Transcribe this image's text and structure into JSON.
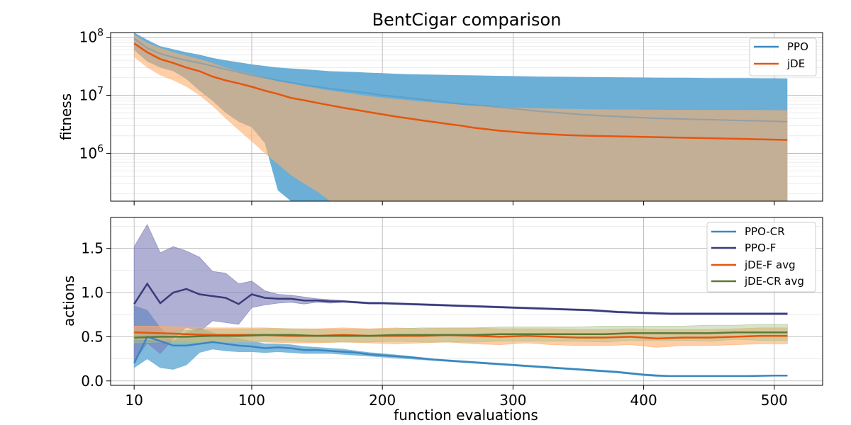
{
  "chart_data": [
    {
      "type": "line",
      "title": "BentCigar comparison",
      "xlabel": "",
      "ylabel": "fitness",
      "yscale": "log",
      "xlim": [
        -8,
        537
      ],
      "ylim": [
        150000,
        120000000
      ],
      "y_ticks": [
        {
          "value": 1000000,
          "base": "10",
          "exp": "6"
        },
        {
          "value": 10000000,
          "base": "10",
          "exp": "7"
        },
        {
          "value": 100000000,
          "base": "10",
          "exp": "8"
        }
      ],
      "x_ticks": [
        10,
        100,
        200,
        300,
        400,
        500
      ],
      "grid": true,
      "legend_position": "top-right",
      "series": [
        {
          "name": "PPO",
          "color": "#3a87bf",
          "band_color": "#6baed6",
          "x": [
            10,
            20,
            30,
            40,
            50,
            60,
            70,
            80,
            90,
            100,
            110,
            120,
            130,
            140,
            150,
            160,
            170,
            180,
            190,
            200,
            210,
            220,
            230,
            240,
            250,
            260,
            270,
            280,
            290,
            300,
            310,
            320,
            330,
            340,
            350,
            360,
            370,
            380,
            390,
            400,
            410,
            420,
            430,
            440,
            450,
            460,
            470,
            480,
            490,
            500,
            510
          ],
          "mean": [
            95000000,
            65000000,
            52000000,
            45000000,
            40000000,
            36000000,
            32000000,
            28000000,
            25000000,
            22000000,
            20000000,
            18000000,
            16500000,
            15000000,
            14000000,
            13000000,
            12200000,
            11500000,
            10800000,
            10000000,
            9500000,
            9000000,
            8500000,
            8000000,
            7500000,
            7100000,
            6800000,
            6500000,
            6200000,
            5900000,
            5600000,
            5300000,
            5100000,
            4900000,
            4700000,
            4550000,
            4400000,
            4300000,
            4200000,
            4100000,
            4000000,
            3950000,
            3900000,
            3850000,
            3800000,
            3750000,
            3700000,
            3650000,
            3600000,
            3550000,
            3500000
          ],
          "upper": [
            120000000,
            90000000,
            70000000,
            62000000,
            55000000,
            50000000,
            44000000,
            40000000,
            37000000,
            34000000,
            32000000,
            30000000,
            29000000,
            28000000,
            27000000,
            26000000,
            25500000,
            25000000,
            24500000,
            24000000,
            23500000,
            23000000,
            22800000,
            22600000,
            22400000,
            22200000,
            22000000,
            21800000,
            21600000,
            21400000,
            21200000,
            21000000,
            20900000,
            20800000,
            20700000,
            20600000,
            20500000,
            20400000,
            20300000,
            20200000,
            20100000,
            20000000,
            20000000,
            19900000,
            19800000,
            19800000,
            19700000,
            19700000,
            19600000,
            19600000,
            19500000
          ],
          "lower": [
            60000000,
            38000000,
            30000000,
            26000000,
            19000000,
            12000000,
            8000000,
            5000000,
            3500000,
            2800000,
            1500000,
            230000,
            150000,
            150000,
            150000,
            150000,
            150000,
            150000,
            150000,
            150000,
            150000,
            150000,
            150000,
            150000,
            150000,
            150000,
            150000,
            150000,
            150000,
            150000,
            150000,
            150000,
            150000,
            150000,
            150000,
            150000,
            150000,
            150000,
            150000,
            150000,
            150000,
            150000,
            150000,
            150000,
            150000,
            150000,
            150000,
            150000,
            150000,
            150000,
            150000
          ]
        },
        {
          "name": "jDE",
          "color": "#e6550d",
          "band_color": "#fdae6b",
          "x": [
            10,
            20,
            30,
            40,
            50,
            60,
            70,
            80,
            90,
            100,
            110,
            120,
            130,
            140,
            150,
            160,
            170,
            180,
            190,
            200,
            210,
            220,
            230,
            240,
            250,
            260,
            270,
            280,
            290,
            300,
            310,
            320,
            330,
            340,
            350,
            360,
            370,
            380,
            390,
            400,
            410,
            420,
            430,
            440,
            450,
            460,
            470,
            480,
            490,
            500,
            510
          ],
          "mean": [
            78000000,
            55000000,
            42000000,
            36000000,
            30000000,
            26000000,
            21000000,
            18000000,
            16000000,
            14000000,
            12000000,
            10500000,
            9000000,
            8200000,
            7400000,
            6700000,
            6100000,
            5600000,
            5100000,
            4700000,
            4300000,
            4000000,
            3700000,
            3450000,
            3200000,
            3000000,
            2750000,
            2600000,
            2450000,
            2350000,
            2250000,
            2180000,
            2120000,
            2070000,
            2030000,
            2000000,
            1980000,
            1960000,
            1940000,
            1920000,
            1900000,
            1880000,
            1860000,
            1840000,
            1820000,
            1800000,
            1780000,
            1760000,
            1740000,
            1720000,
            1700000
          ],
          "upper": [
            110000000,
            80000000,
            65000000,
            55000000,
            48000000,
            42000000,
            36000000,
            30000000,
            26000000,
            23000000,
            20000000,
            17500000,
            16000000,
            14500000,
            13200000,
            12100000,
            11200000,
            10400000,
            9700000,
            9100000,
            8600000,
            8200000,
            7800000,
            7500000,
            7200000,
            6900000,
            6700000,
            6500000,
            6300000,
            6150000,
            6050000,
            5950000,
            5900000,
            5850000,
            5800000,
            5750000,
            5720000,
            5700000,
            5680000,
            5660000,
            5640000,
            5620000,
            5610000,
            5600000,
            5590000,
            5580000,
            5570000,
            5560000,
            5550000,
            5540000,
            5530000
          ],
          "lower": [
            45000000,
            30000000,
            22000000,
            18000000,
            14000000,
            10000000,
            6500000,
            4000000,
            2500000,
            1600000,
            1000000,
            650000,
            420000,
            300000,
            220000,
            150000,
            150000,
            150000,
            150000,
            150000,
            150000,
            150000,
            150000,
            150000,
            150000,
            150000,
            150000,
            150000,
            150000,
            150000,
            150000,
            150000,
            150000,
            150000,
            150000,
            150000,
            150000,
            150000,
            150000,
            150000,
            150000,
            150000,
            150000,
            150000,
            150000,
            150000,
            150000,
            150000,
            150000,
            150000,
            150000
          ]
        }
      ]
    },
    {
      "type": "line",
      "title": "",
      "xlabel": "function evaluations",
      "ylabel": "actions",
      "ylim": [
        -0.05,
        1.85
      ],
      "y_ticks": [
        0.0,
        0.5,
        1.0,
        1.5
      ],
      "y_tick_labels": [
        "0.0",
        "0.5",
        "1.0",
        "1.5"
      ],
      "x_ticks": [
        10,
        100,
        200,
        300,
        400,
        500
      ],
      "xlim": [
        -8,
        537
      ],
      "grid": true,
      "legend_position": "top-right",
      "series": [
        {
          "name": "PPO-CR",
          "color": "#3a87bf",
          "band_color": "#6baed6",
          "x": [
            10,
            20,
            30,
            40,
            50,
            60,
            70,
            80,
            90,
            100,
            110,
            120,
            130,
            140,
            150,
            160,
            170,
            180,
            190,
            200,
            220,
            240,
            260,
            280,
            300,
            320,
            340,
            360,
            380,
            400,
            410,
            420,
            440,
            460,
            480,
            500,
            510
          ],
          "mean": [
            0.2,
            0.5,
            0.45,
            0.4,
            0.4,
            0.42,
            0.44,
            0.42,
            0.4,
            0.39,
            0.37,
            0.38,
            0.37,
            0.35,
            0.35,
            0.34,
            0.33,
            0.32,
            0.3,
            0.29,
            0.27,
            0.24,
            0.22,
            0.2,
            0.18,
            0.16,
            0.14,
            0.12,
            0.1,
            0.07,
            0.06,
            0.055,
            0.055,
            0.055,
            0.055,
            0.06,
            0.06
          ],
          "upper": [
            0.85,
            0.8,
            0.6,
            0.45,
            0.55,
            0.6,
            0.55,
            0.5,
            0.48,
            0.45,
            0.42,
            0.42,
            0.41,
            0.39,
            0.38,
            0.37,
            0.36,
            0.34,
            0.32,
            0.31,
            0.28,
            0.25,
            0.23,
            0.21,
            0.19,
            0.17,
            0.15,
            0.13,
            0.11,
            0.08,
            0.07,
            0.06,
            0.06,
            0.06,
            0.06,
            0.065,
            0.065
          ],
          "lower": [
            0.15,
            0.25,
            0.15,
            0.13,
            0.18,
            0.32,
            0.36,
            0.34,
            0.33,
            0.33,
            0.32,
            0.33,
            0.32,
            0.31,
            0.31,
            0.31,
            0.3,
            0.29,
            0.28,
            0.27,
            0.25,
            0.23,
            0.21,
            0.19,
            0.17,
            0.15,
            0.13,
            0.11,
            0.09,
            0.06,
            0.05,
            0.05,
            0.05,
            0.05,
            0.05,
            0.055,
            0.055
          ]
        },
        {
          "name": "PPO-F",
          "color": "#393b79",
          "band_color": "#7b7bb8",
          "x": [
            10,
            20,
            30,
            40,
            50,
            60,
            70,
            80,
            90,
            100,
            110,
            120,
            130,
            140,
            150,
            160,
            170,
            180,
            190,
            200,
            220,
            240,
            260,
            280,
            300,
            320,
            340,
            360,
            380,
            400,
            420,
            440,
            460,
            480,
            500,
            510
          ],
          "mean": [
            0.87,
            1.1,
            0.88,
            1.0,
            1.04,
            0.98,
            0.96,
            0.94,
            0.87,
            0.98,
            0.94,
            0.93,
            0.93,
            0.91,
            0.91,
            0.9,
            0.9,
            0.89,
            0.88,
            0.88,
            0.87,
            0.86,
            0.85,
            0.84,
            0.83,
            0.82,
            0.81,
            0.8,
            0.78,
            0.77,
            0.76,
            0.76,
            0.76,
            0.76,
            0.76,
            0.76
          ],
          "upper": [
            1.52,
            1.77,
            1.45,
            1.52,
            1.47,
            1.4,
            1.24,
            1.22,
            1.1,
            1.13,
            1.02,
            0.98,
            0.97,
            0.95,
            0.93,
            0.92,
            0.91,
            0.9,
            0.89,
            0.89,
            0.88,
            0.87,
            0.86,
            0.85,
            0.84,
            0.83,
            0.82,
            0.81,
            0.79,
            0.78,
            0.77,
            0.77,
            0.77,
            0.77,
            0.77,
            0.77
          ],
          "lower": [
            0.22,
            0.43,
            0.31,
            0.48,
            0.61,
            0.56,
            0.68,
            0.66,
            0.64,
            0.83,
            0.86,
            0.88,
            0.89,
            0.87,
            0.89,
            0.88,
            0.89,
            0.88,
            0.87,
            0.87,
            0.86,
            0.85,
            0.84,
            0.83,
            0.82,
            0.81,
            0.8,
            0.79,
            0.77,
            0.76,
            0.75,
            0.75,
            0.75,
            0.75,
            0.75,
            0.75
          ]
        },
        {
          "name": "jDE-F avg",
          "color": "#e6550d",
          "band_color": "#fdae6b",
          "x": [
            10,
            30,
            50,
            70,
            90,
            110,
            130,
            150,
            170,
            190,
            210,
            230,
            250,
            270,
            290,
            310,
            330,
            350,
            370,
            390,
            410,
            430,
            450,
            470,
            490,
            510
          ],
          "mean": [
            0.55,
            0.54,
            0.53,
            0.52,
            0.52,
            0.52,
            0.51,
            0.51,
            0.52,
            0.51,
            0.51,
            0.51,
            0.52,
            0.51,
            0.5,
            0.51,
            0.5,
            0.49,
            0.49,
            0.5,
            0.48,
            0.49,
            0.49,
            0.5,
            0.51,
            0.51
          ],
          "upper": [
            0.62,
            0.62,
            0.61,
            0.6,
            0.6,
            0.6,
            0.59,
            0.59,
            0.6,
            0.59,
            0.6,
            0.59,
            0.6,
            0.6,
            0.59,
            0.59,
            0.59,
            0.58,
            0.58,
            0.59,
            0.58,
            0.58,
            0.58,
            0.59,
            0.6,
            0.6
          ],
          "lower": [
            0.47,
            0.46,
            0.45,
            0.44,
            0.44,
            0.44,
            0.43,
            0.43,
            0.44,
            0.43,
            0.42,
            0.43,
            0.44,
            0.42,
            0.41,
            0.43,
            0.41,
            0.4,
            0.4,
            0.41,
            0.38,
            0.4,
            0.4,
            0.41,
            0.42,
            0.42
          ]
        },
        {
          "name": "jDE-CR avg",
          "color": "#5a7a34",
          "band_color": "#a8c08a",
          "x": [
            10,
            30,
            50,
            70,
            90,
            110,
            130,
            150,
            170,
            190,
            210,
            230,
            250,
            270,
            290,
            310,
            330,
            350,
            370,
            390,
            410,
            430,
            450,
            470,
            490,
            510
          ],
          "mean": [
            0.49,
            0.5,
            0.5,
            0.51,
            0.51,
            0.52,
            0.52,
            0.51,
            0.51,
            0.51,
            0.52,
            0.52,
            0.52,
            0.52,
            0.53,
            0.53,
            0.53,
            0.53,
            0.53,
            0.54,
            0.54,
            0.54,
            0.54,
            0.55,
            0.55,
            0.55
          ],
          "upper": [
            0.55,
            0.56,
            0.57,
            0.58,
            0.58,
            0.59,
            0.59,
            0.58,
            0.58,
            0.58,
            0.59,
            0.6,
            0.6,
            0.6,
            0.61,
            0.61,
            0.61,
            0.61,
            0.62,
            0.62,
            0.62,
            0.62,
            0.63,
            0.63,
            0.64,
            0.64
          ],
          "lower": [
            0.43,
            0.44,
            0.43,
            0.44,
            0.44,
            0.45,
            0.45,
            0.44,
            0.44,
            0.44,
            0.45,
            0.44,
            0.44,
            0.44,
            0.45,
            0.45,
            0.45,
            0.45,
            0.44,
            0.46,
            0.46,
            0.46,
            0.45,
            0.47,
            0.46,
            0.46
          ]
        }
      ]
    }
  ]
}
